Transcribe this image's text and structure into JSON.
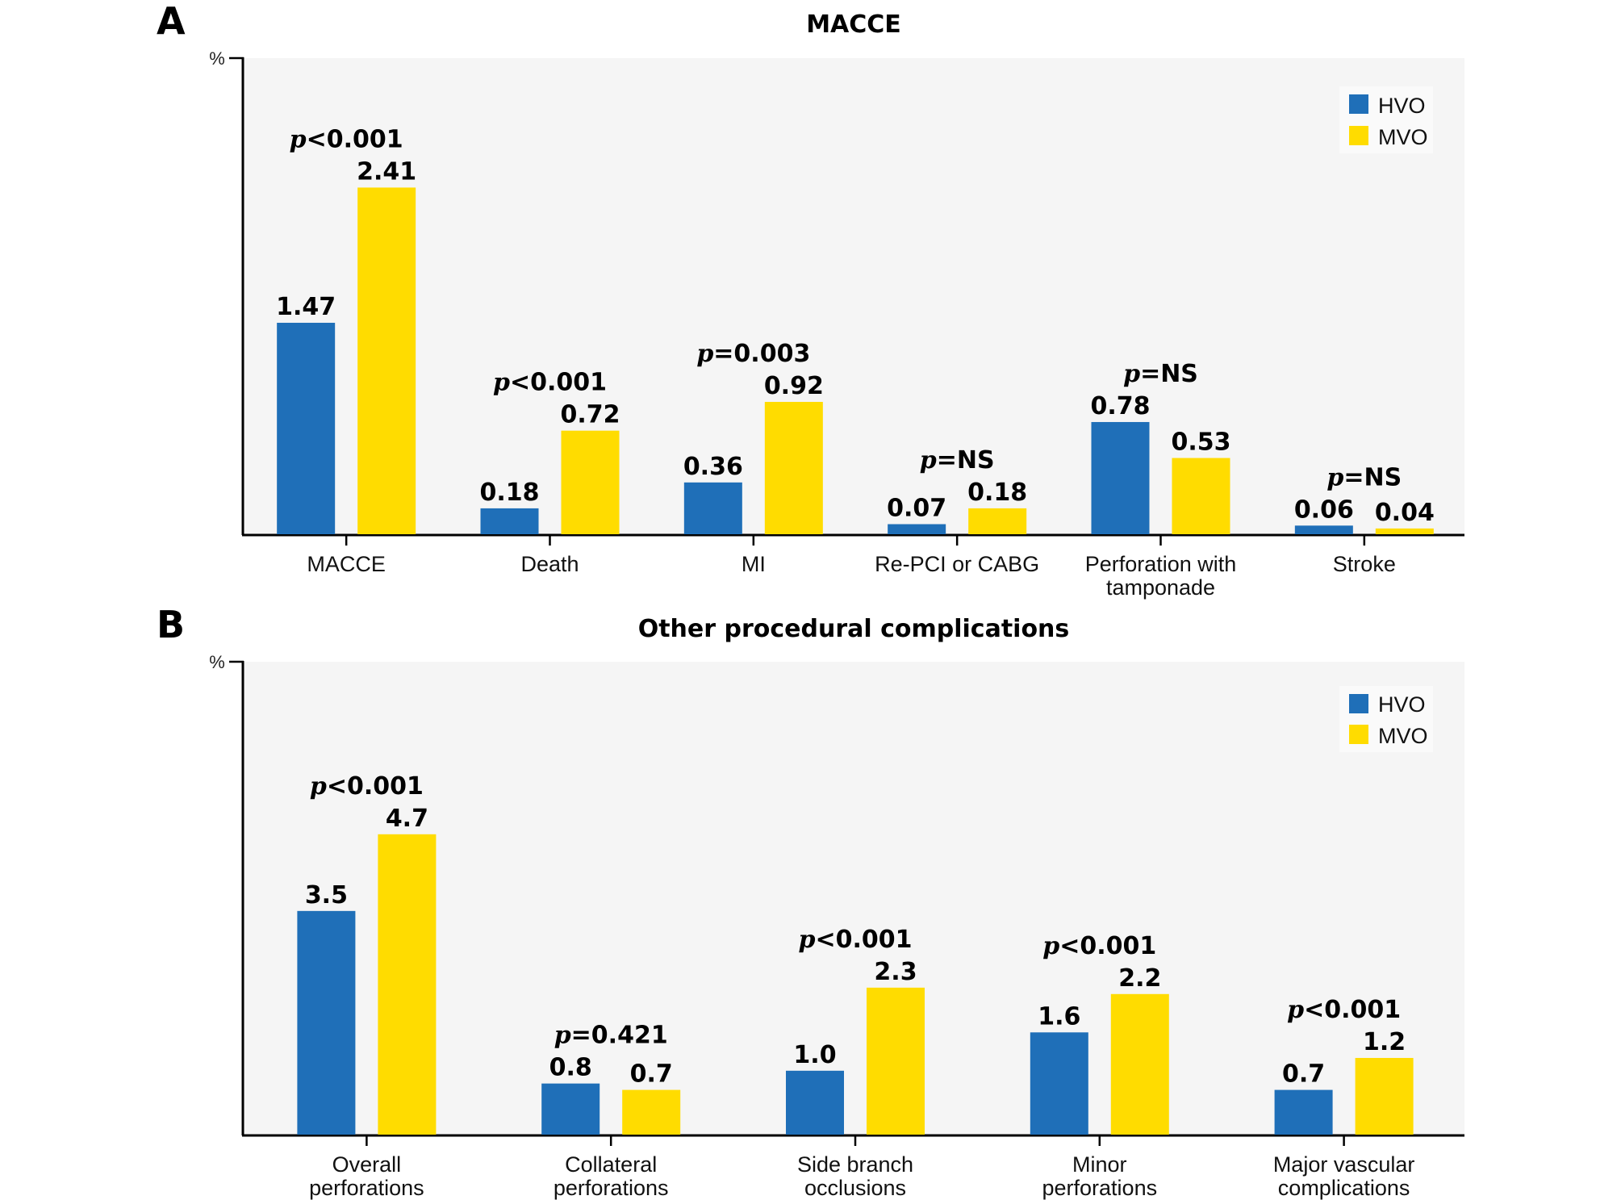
{
  "chart_data": [
    {
      "panel": "A",
      "type": "bar",
      "title": "MACCE",
      "ylabel": "%",
      "xlabel": "",
      "ylim": [
        0,
        3.31
      ],
      "grid": false,
      "legend_position": "top-right",
      "colors": {
        "HVO": "#1f6fb8",
        "MVO": "#ffdc00"
      },
      "categories": [
        "MACCE",
        "Death",
        "MI",
        "Re-PCI or CABG",
        "Perforation with tamponade",
        "Stroke"
      ],
      "category_lines": [
        [
          "MACCE"
        ],
        [
          "Death"
        ],
        [
          "MI"
        ],
        [
          "Re-PCI or CABG"
        ],
        [
          "Perforation with",
          "tamponade"
        ],
        [
          "Stroke"
        ]
      ],
      "series": [
        {
          "name": "HVO",
          "values": [
            1.47,
            0.18,
            0.36,
            0.07,
            0.78,
            0.06
          ],
          "labels": [
            "1.47",
            "0.18",
            "0.36",
            "0.07",
            "0.78",
            "0.06"
          ]
        },
        {
          "name": "MVO",
          "values": [
            2.41,
            0.72,
            0.92,
            0.18,
            0.53,
            0.04
          ],
          "labels": [
            "2.41",
            "0.72",
            "0.92",
            "0.18",
            "0.53",
            "0.04"
          ]
        }
      ],
      "annotations": [
        "<0.001",
        "<0.001",
        "=0.003",
        "=NS",
        "=NS",
        "=NS"
      ],
      "annotation_prefix": "p"
    },
    {
      "panel": "B",
      "type": "bar",
      "title": "Other procedural complications",
      "ylabel": "%",
      "xlabel": "",
      "ylim": [
        0,
        7.4
      ],
      "grid": false,
      "legend_position": "top-right",
      "colors": {
        "HVO": "#1f6fb8",
        "MVO": "#ffdc00"
      },
      "categories": [
        "Overall perforations",
        "Collateral perforations",
        "Side branch occlusions",
        "Minor perforations",
        "Major vascular complications"
      ],
      "category_lines": [
        [
          "Overall",
          "perforations"
        ],
        [
          "Collateral",
          "perforations"
        ],
        [
          "Side branch",
          "occlusions"
        ],
        [
          "Minor",
          "perforations"
        ],
        [
          "Major vascular",
          "complications"
        ]
      ],
      "series": [
        {
          "name": "HVO",
          "values": [
            3.5,
            0.8,
            1.0,
            1.6,
            0.7
          ],
          "labels": [
            "3.5",
            "0.8",
            "1.0",
            "1.6",
            "0.7"
          ]
        },
        {
          "name": "MVO",
          "values": [
            4.7,
            0.7,
            2.3,
            2.2,
            1.2
          ],
          "labels": [
            "4.7",
            "0.7",
            "2.3",
            "2.2",
            "1.2"
          ]
        }
      ],
      "annotations": [
        "<0.001",
        "=0.421",
        "<0.001",
        "<0.001",
        "<0.001"
      ],
      "annotation_prefix": "p"
    }
  ]
}
